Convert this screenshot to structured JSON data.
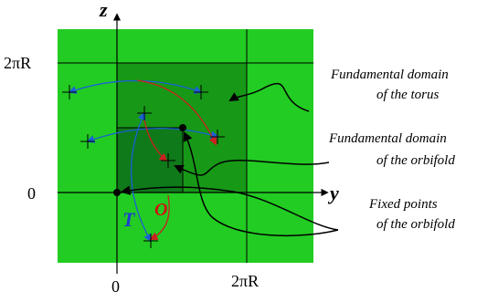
{
  "axes": {
    "z_label": "z",
    "y_label": "y",
    "z_tick_top": "2πR",
    "z_tick_origin": "0",
    "y_tick_origin": "0",
    "y_tick_right": "2πR"
  },
  "labels": {
    "T": "T",
    "O": "O"
  },
  "annotations": {
    "torus_line1": "Fundamental domain",
    "torus_line2": "of the torus",
    "orbifold_line1": "Fundamental domain",
    "orbifold_line2": "of the orbifold",
    "fixed_line1": "Fixed points",
    "fixed_line2": "of the orbifold"
  },
  "colors": {
    "background_region": "#22cc22",
    "torus_domain": "#179917",
    "orbifold_domain": "#0f7a1a",
    "blue_arrow": "#1a5fd6",
    "red_arrow": "#cc1f1f",
    "label_T": "#1f3fcf",
    "label_O": "#d01010"
  }
}
